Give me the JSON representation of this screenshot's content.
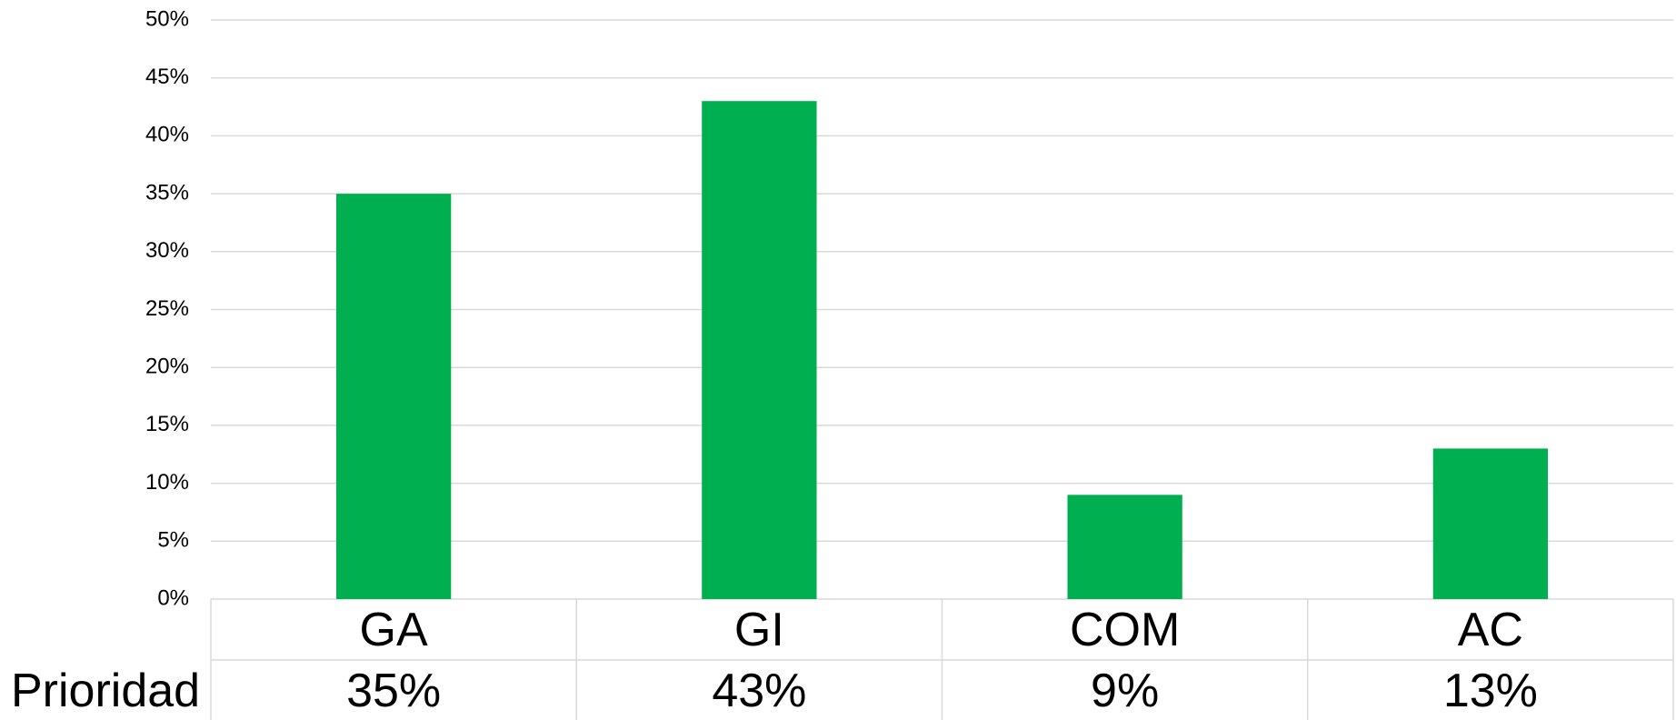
{
  "chart_data": {
    "type": "bar",
    "categories": [
      "GA",
      "GI",
      "COM",
      "AC"
    ],
    "series": [
      {
        "name": "Prioridad",
        "color": "#00b050",
        "values": [
          35,
          43,
          9,
          13
        ],
        "value_labels": [
          "35%",
          "43%",
          "9%",
          "13%"
        ]
      }
    ],
    "ylim": [
      0,
      50
    ],
    "yticks": [
      {
        "value": 0,
        "label": "0%"
      },
      {
        "value": 5,
        "label": "5%"
      },
      {
        "value": 10,
        "label": "10%"
      },
      {
        "value": 15,
        "label": "15%"
      },
      {
        "value": 20,
        "label": "20%"
      },
      {
        "value": 25,
        "label": "25%"
      },
      {
        "value": 30,
        "label": "30%"
      },
      {
        "value": 35,
        "label": "35%"
      },
      {
        "value": 40,
        "label": "40%"
      },
      {
        "value": 45,
        "label": "45%"
      },
      {
        "value": 50,
        "label": "50%"
      }
    ],
    "grid": true
  }
}
